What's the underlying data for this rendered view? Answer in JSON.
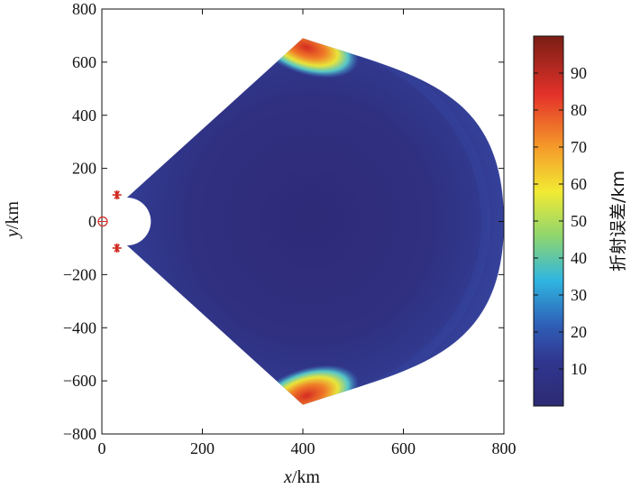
{
  "chart_data": {
    "type": "heatmap",
    "x_var": "x",
    "x_unit": "/km",
    "y_var": "y",
    "y_unit": "/km",
    "xlim": [
      0,
      800
    ],
    "ylim": [
      -800,
      800
    ],
    "x_ticks": [
      "0",
      "200",
      "400",
      "600",
      "800"
    ],
    "y_ticks": [
      "800",
      "600",
      "400",
      "200",
      "0",
      "−200",
      "−400",
      "−600",
      "−800"
    ],
    "colorbar": {
      "label": "折射误差/km",
      "range": [
        0,
        100
      ],
      "ticks": [
        "10",
        "20",
        "30",
        "40",
        "50",
        "60",
        "70",
        "80",
        "90"
      ],
      "colormap": [
        "#2c2a73",
        "#30368f",
        "#2f5fb7",
        "#2fb6e0",
        "#8fd66e",
        "#f2ea33",
        "#f59a2a",
        "#e4322a",
        "#7a1e16"
      ]
    },
    "region": {
      "apex_x": 400,
      "apex_y": 690,
      "right_x": 800,
      "notch_center": [
        47,
        0
      ],
      "notch_radius": 40,
      "notch_top": [
        50,
        90
      ],
      "notch_bottom": [
        50,
        -90
      ]
    },
    "stations": [
      {
        "marker": "asterisk",
        "x": 30,
        "y": 100
      },
      {
        "marker": "asterisk",
        "x": 30,
        "y": -100
      },
      {
        "marker": "circle",
        "x": 0,
        "y": 0
      }
    ],
    "grid": false,
    "legend": "none"
  }
}
